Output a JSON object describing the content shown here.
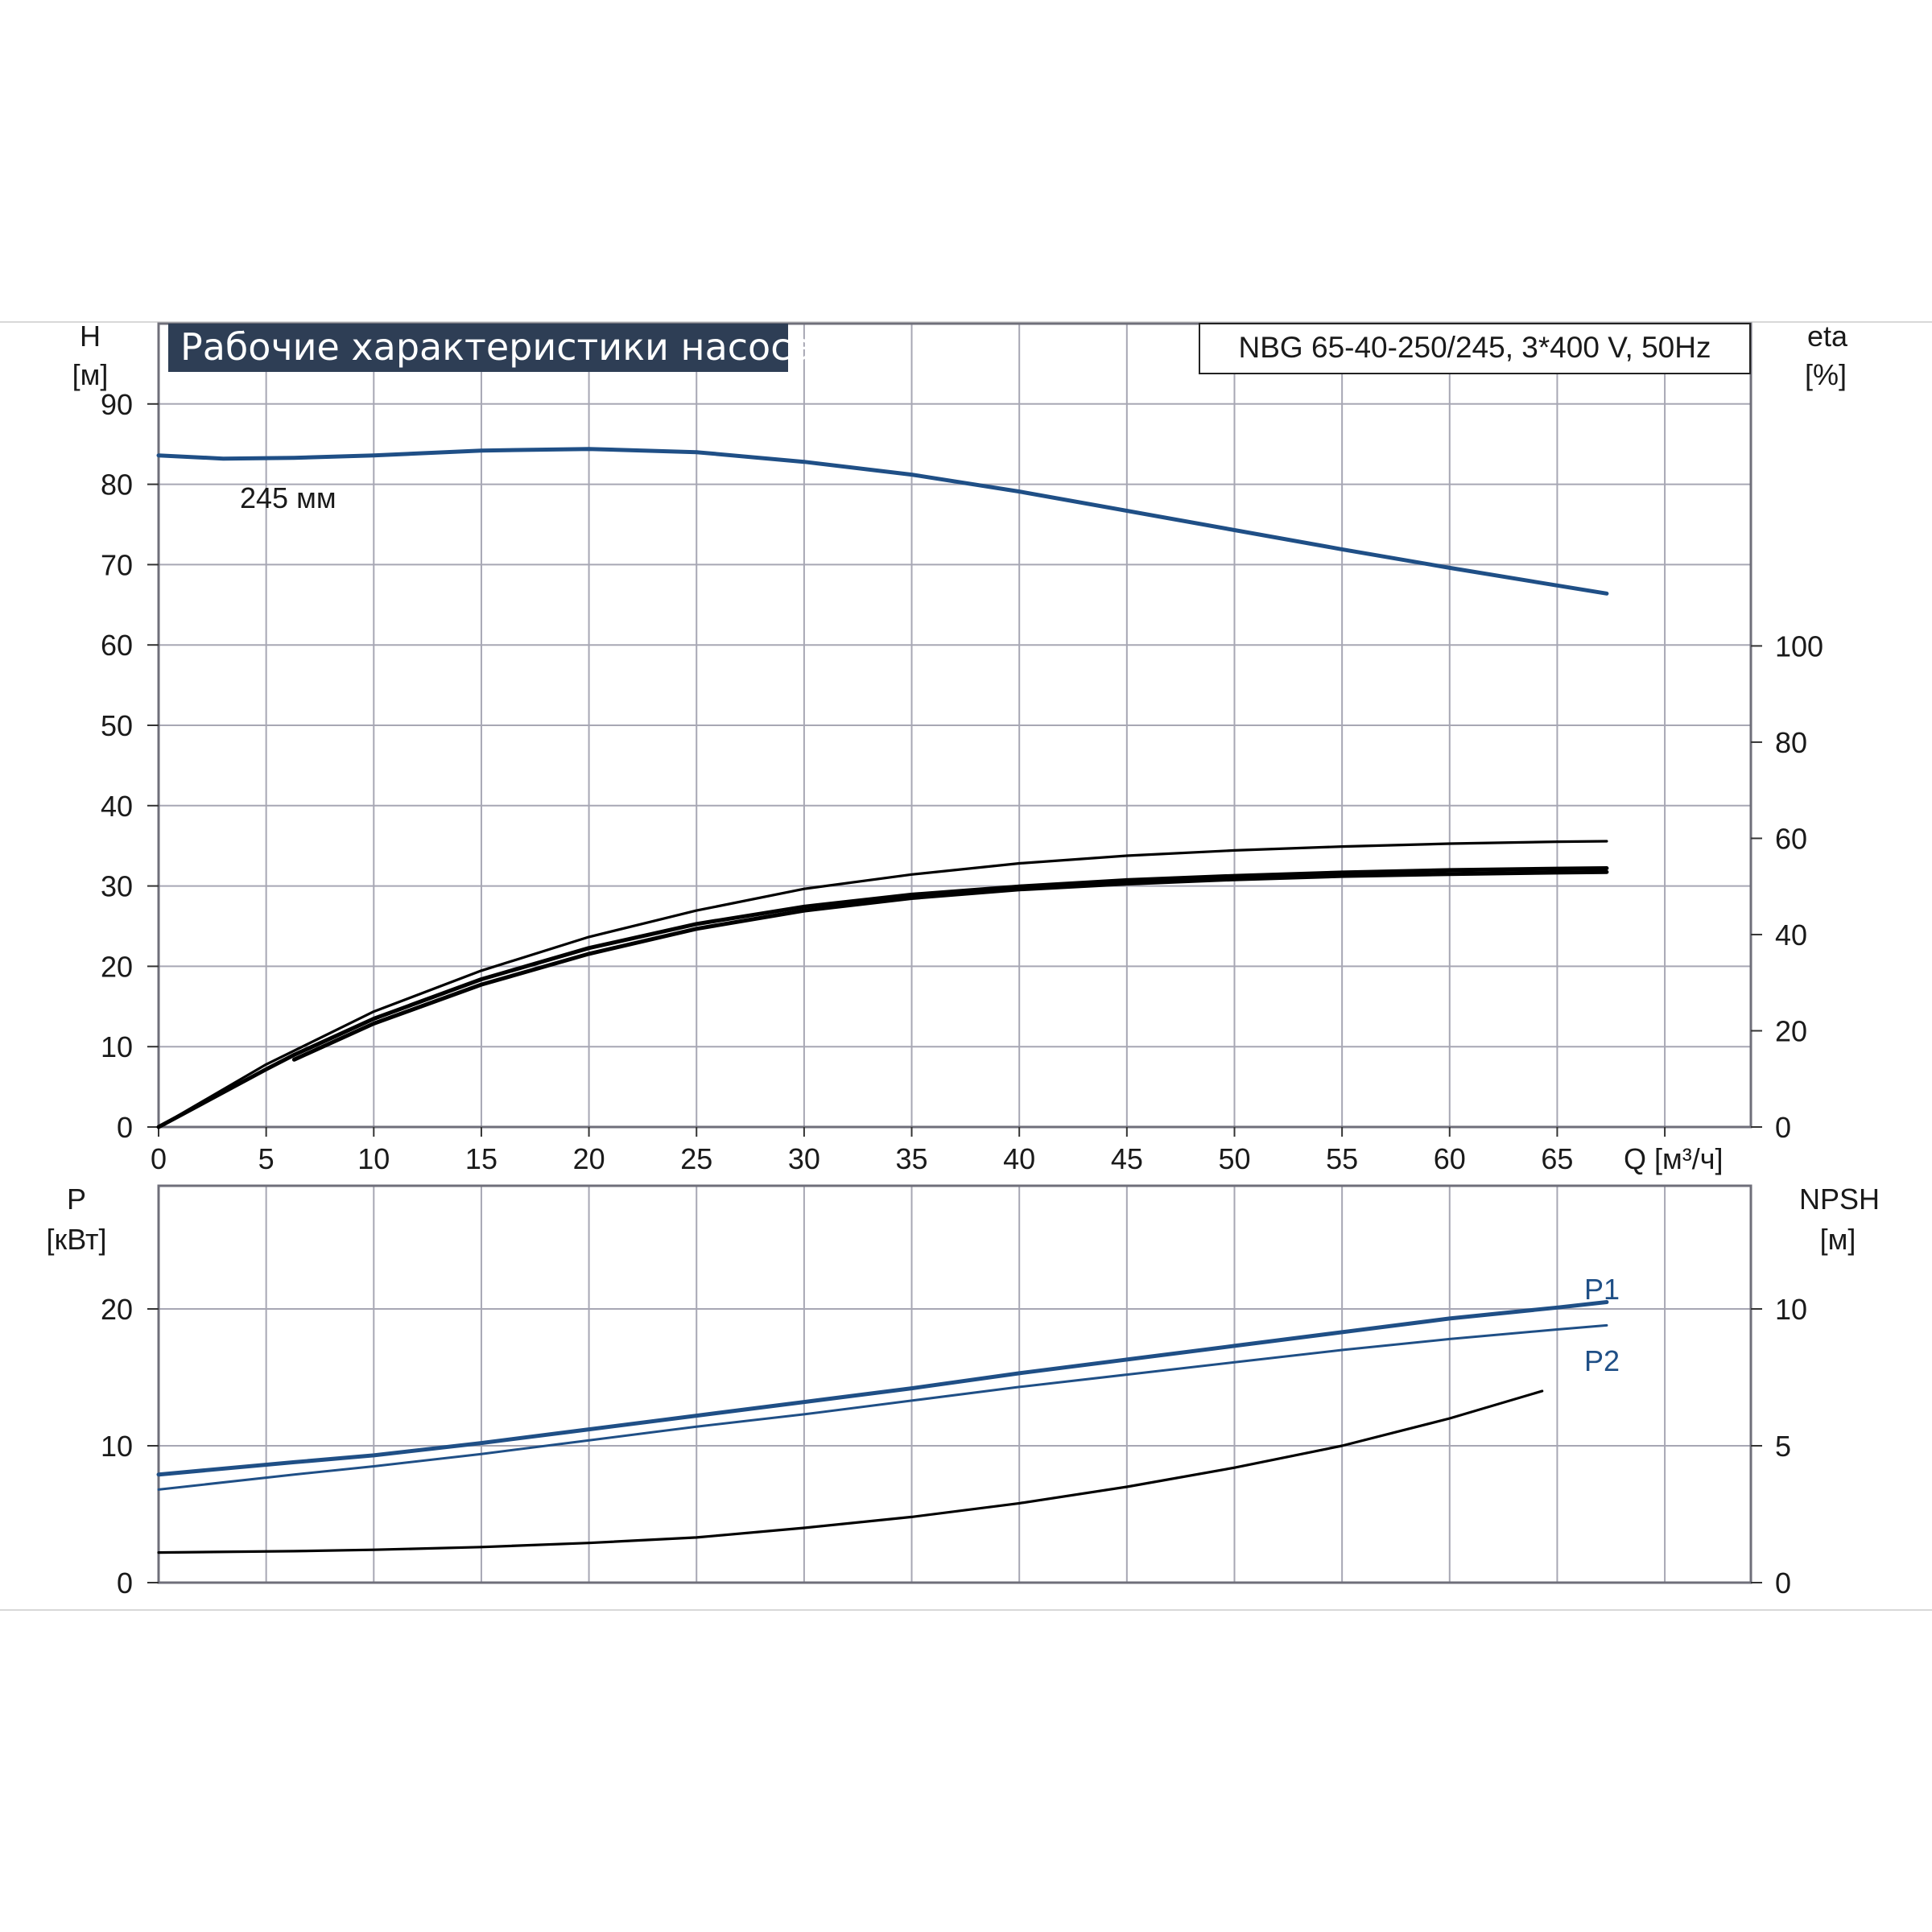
{
  "chart_data": [
    {
      "type": "line",
      "title": "Рабочие характеристики насоса",
      "model": "NBG 65-40-250/245, 3*400 V, 50Hz",
      "xlabel": "Q [м³/ч]",
      "ylabel": [
        "H",
        "[м]"
      ],
      "y2label": [
        "eta",
        "[%]"
      ],
      "xlim": [
        0,
        74
      ],
      "ylim": [
        0,
        100
      ],
      "y2lim": [
        0,
        167
      ],
      "x_ticks": [
        0,
        5,
        10,
        15,
        20,
        25,
        30,
        35,
        40,
        45,
        50,
        55,
        60,
        65
      ],
      "y_ticks": [
        0,
        10,
        20,
        30,
        40,
        50,
        60,
        70,
        80,
        90
      ],
      "y2_ticks": [
        0,
        20,
        40,
        60,
        80,
        100
      ],
      "grid": true,
      "annotation": "245 мм",
      "series": [
        {
          "name": "245 мм",
          "color": "#1f4f86",
          "axis": "left",
          "x": [
            0,
            3,
            6.3,
            10,
            15,
            20,
            25,
            30,
            35,
            40,
            45,
            50,
            55,
            60,
            65,
            67.3
          ],
          "y": [
            83.6,
            83.2,
            83.3,
            83.6,
            84.2,
            84.4,
            84.0,
            82.8,
            81.2,
            79.1,
            76.7,
            74.3,
            71.9,
            69.6,
            67.4,
            66.4
          ]
        },
        {
          "axis": "right",
          "color": "#000000",
          "x": [
            0,
            5,
            6.3,
            10,
            15,
            20,
            25,
            30,
            35,
            40,
            45,
            50,
            55,
            60,
            65,
            67.3
          ],
          "y": [
            0,
            12,
            15,
            22.5,
            30.7,
            37.2,
            42.2,
            45.8,
            48.3,
            50.0,
            51.3,
            52.2,
            52.9,
            53.4,
            53.7,
            53.8
          ]
        },
        {
          "axis": "right",
          "color": "#000000",
          "x": [
            0,
            5,
            10,
            15,
            20,
            25,
            30,
            35,
            40,
            45,
            50,
            55,
            60,
            65,
            67.3
          ],
          "y": [
            0,
            13,
            24,
            32.5,
            39.5,
            45,
            49.5,
            52.5,
            54.8,
            56.4,
            57.5,
            58.3,
            58.9,
            59.3,
            59.4
          ]
        },
        {
          "axis": "right",
          "color": "#000000",
          "x": [
            6.3,
            10,
            15,
            20,
            25,
            30,
            35,
            40,
            45,
            50,
            55,
            60,
            65,
            67.3
          ],
          "y": [
            14,
            21.5,
            29.6,
            36.0,
            41.2,
            45.0,
            47.6,
            49.4,
            50.6,
            51.5,
            52.2,
            52.6,
            52.9,
            53.0
          ]
        }
      ]
    },
    {
      "type": "line",
      "xlim": [
        0,
        74
      ],
      "ylim": [
        0,
        29
      ],
      "y2lim": [
        0,
        14.5
      ],
      "ylabel": [
        "P",
        "[кВт]"
      ],
      "y2label": [
        "NPSH",
        "[м]"
      ],
      "y_ticks": [
        0,
        10,
        20
      ],
      "y2_ticks": [
        0,
        5,
        10
      ],
      "grid": true,
      "series": [
        {
          "name": "P1",
          "color": "#1f4f86",
          "axis": "left",
          "x": [
            0,
            6.3,
            10,
            15,
            20,
            25,
            30,
            35,
            40,
            45,
            50,
            55,
            60,
            65,
            67.3
          ],
          "y": [
            7.9,
            8.8,
            9.3,
            10.2,
            11.2,
            12.2,
            13.2,
            14.2,
            15.3,
            16.3,
            17.3,
            18.3,
            19.3,
            20.1,
            20.5
          ]
        },
        {
          "name": "P2",
          "color": "#1f4f86",
          "axis": "left",
          "x": [
            0,
            6.3,
            10,
            15,
            20,
            25,
            30,
            35,
            40,
            45,
            50,
            55,
            60,
            65,
            67.3
          ],
          "y": [
            6.8,
            7.9,
            8.5,
            9.4,
            10.4,
            11.4,
            12.3,
            13.3,
            14.3,
            15.2,
            16.1,
            17.0,
            17.8,
            18.5,
            18.8
          ]
        },
        {
          "name": "NPSH",
          "color": "#000000",
          "axis": "right",
          "x": [
            0,
            6.3,
            10,
            15,
            20,
            25,
            30,
            35,
            40,
            45,
            50,
            55,
            60,
            64.3
          ],
          "y": [
            1.1,
            1.15,
            1.2,
            1.3,
            1.45,
            1.65,
            2.0,
            2.4,
            2.9,
            3.5,
            4.2,
            5.0,
            6.0,
            7.0
          ]
        }
      ]
    }
  ]
}
